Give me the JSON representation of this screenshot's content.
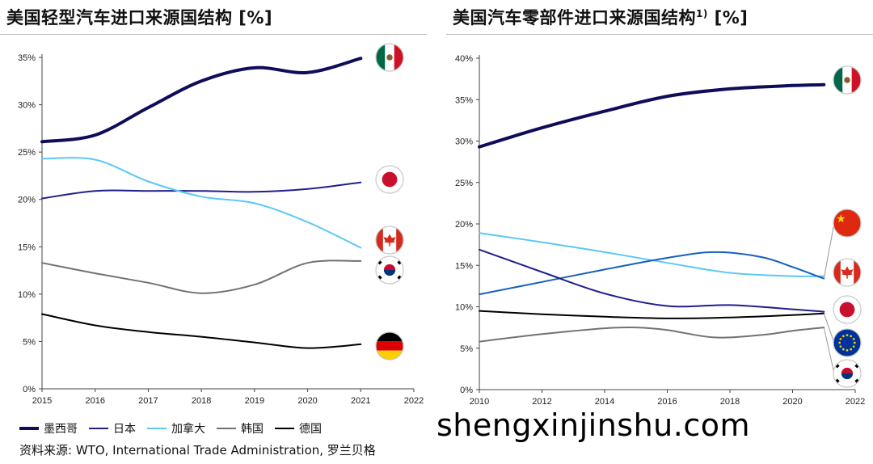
{
  "titles": {
    "left": "美国轻型汽车进口来源国结构 [%]",
    "right_main": "美国汽车零部件进口来源国结构",
    "right_sup": "1)",
    "right_tail": " [%]"
  },
  "legend": [
    {
      "label": "墨西哥",
      "color": "#0d0d5a"
    },
    {
      "label": "日本",
      "color": "#1f1f8f"
    },
    {
      "label": "加拿大",
      "color": "#5bc8f5"
    },
    {
      "label": "韩国",
      "color": "#6e7377"
    },
    {
      "label": "德国",
      "color": "#000000"
    }
  ],
  "source": "资料来源: WTO, International Trade Administration, 罗兰贝格",
  "watermark": "shengxinjinshu.com",
  "chart_data": [
    {
      "type": "line",
      "title": "美国轻型汽车进口来源国结构 [%]",
      "x": [
        2015,
        2016,
        2017,
        2018,
        2019,
        2020,
        2021
      ],
      "xlim": [
        2015,
        2022
      ],
      "xticks": [
        2015,
        2016,
        2017,
        2018,
        2019,
        2020,
        2021,
        2022
      ],
      "ylim": [
        0,
        35
      ],
      "yticks": [
        0,
        5,
        10,
        15,
        20,
        25,
        30,
        35
      ],
      "ytick_labels": [
        "0%",
        "5%",
        "10%",
        "15%",
        "20%",
        "25%",
        "30%",
        "35%"
      ],
      "series": [
        {
          "name": "墨西哥",
          "color": "#0d0d5a",
          "width": 4,
          "flag": "mexico-flag-icon",
          "values": [
            26.1,
            26.8,
            29.7,
            32.5,
            33.9,
            33.4,
            34.9
          ]
        },
        {
          "name": "日本",
          "color": "#1f1f8f",
          "width": 2,
          "flag": "japan-flag-icon",
          "values": [
            20.1,
            20.9,
            20.9,
            20.9,
            20.8,
            21.1,
            21.8
          ]
        },
        {
          "name": "加拿大",
          "color": "#5bc8f5",
          "width": 2,
          "flag": "canada-flag-icon",
          "values": [
            24.3,
            24.2,
            21.9,
            20.3,
            19.6,
            17.6,
            14.9
          ]
        },
        {
          "name": "韩国",
          "color": "#6e7377",
          "width": 2,
          "flag": "korea-flag-icon",
          "values": [
            13.3,
            12.2,
            11.2,
            10.1,
            11.0,
            13.3,
            13.5
          ]
        },
        {
          "name": "德国",
          "color": "#000000",
          "width": 2,
          "flag": "germany-flag-icon",
          "values": [
            7.9,
            6.7,
            6.0,
            5.5,
            4.9,
            4.3,
            4.7
          ]
        }
      ]
    },
    {
      "type": "line",
      "title": "美国汽车零部件进口来源国结构 1) [%]",
      "xlim": [
        2010,
        2022
      ],
      "xticks": [
        2010,
        2012,
        2014,
        2016,
        2018,
        2020,
        2022
      ],
      "ylim": [
        0,
        40
      ],
      "yticks": [
        0,
        5,
        10,
        15,
        20,
        25,
        30,
        35,
        40
      ],
      "ytick_labels": [
        "0%",
        "5%",
        "10%",
        "15%",
        "20%",
        "25%",
        "30%",
        "35%",
        "40%"
      ],
      "series": [
        {
          "name": "墨西哥",
          "color": "#0d0d5a",
          "width": 4,
          "flag": "mexico-flag-icon",
          "x": [
            2010,
            2012,
            2014,
            2016,
            2018,
            2020,
            2021
          ],
          "values": [
            29.3,
            31.6,
            33.6,
            35.4,
            36.3,
            36.7,
            36.8
          ]
        },
        {
          "name": "加拿大",
          "color": "#5bc8f5",
          "width": 2,
          "flag": "canada-flag-icon",
          "x": [
            2010,
            2012,
            2014,
            2016,
            2018,
            2020,
            2021
          ],
          "values": [
            18.9,
            17.8,
            16.6,
            15.3,
            14.1,
            13.7,
            13.7
          ]
        },
        {
          "name": "中国",
          "color": "#1560bd",
          "width": 2,
          "flag": "china-flag-icon",
          "x": [
            2010,
            2012,
            2014,
            2016,
            2017.5,
            2019,
            2020,
            2021
          ],
          "values": [
            11.5,
            13.0,
            14.5,
            15.9,
            16.6,
            16.0,
            14.8,
            13.4
          ]
        },
        {
          "name": "日本",
          "color": "#1f1f8f",
          "width": 2,
          "flag": "japan-flag-icon",
          "x": [
            2010,
            2012,
            2014,
            2016,
            2018,
            2020,
            2021
          ],
          "values": [
            16.9,
            14.2,
            11.6,
            10.1,
            10.2,
            9.7,
            9.4
          ]
        },
        {
          "name": "欧洲",
          "color": "#000000",
          "width": 2,
          "flag": "eu-flag-icon",
          "x": [
            2010,
            2012,
            2014,
            2016,
            2018,
            2020,
            2021
          ],
          "values": [
            9.5,
            9.1,
            8.8,
            8.6,
            8.7,
            9.0,
            9.2
          ]
        },
        {
          "name": "韩国",
          "color": "#6e7377",
          "width": 2,
          "flag": "korea-flag-icon",
          "x": [
            2010,
            2012,
            2014,
            2015,
            2016,
            2017.5,
            2019,
            2020,
            2021
          ],
          "values": [
            5.8,
            6.7,
            7.4,
            7.5,
            7.2,
            6.3,
            6.6,
            7.1,
            7.5
          ]
        }
      ],
      "flags_order": [
        "mexico-flag-icon",
        "china-flag-icon",
        "canada-flag-icon",
        "japan-flag-icon",
        "eu-flag-icon",
        "korea-flag-icon"
      ]
    }
  ]
}
